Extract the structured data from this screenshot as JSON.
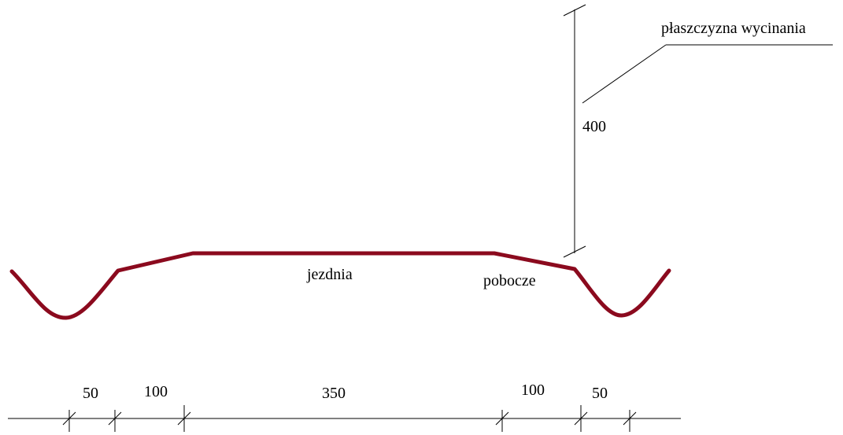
{
  "labels": {
    "plane": "płaszczyzna wycinania",
    "height": "400",
    "roadway": "jezdnia",
    "shoulder": "pobocze"
  },
  "dimensions": {
    "left_ditch": "50",
    "left_shoulder": "100",
    "roadway": "350",
    "right_shoulder": "100",
    "right_ditch": "50"
  },
  "colors": {
    "road_profile": "#8b0a1e",
    "lines": "#000000"
  }
}
